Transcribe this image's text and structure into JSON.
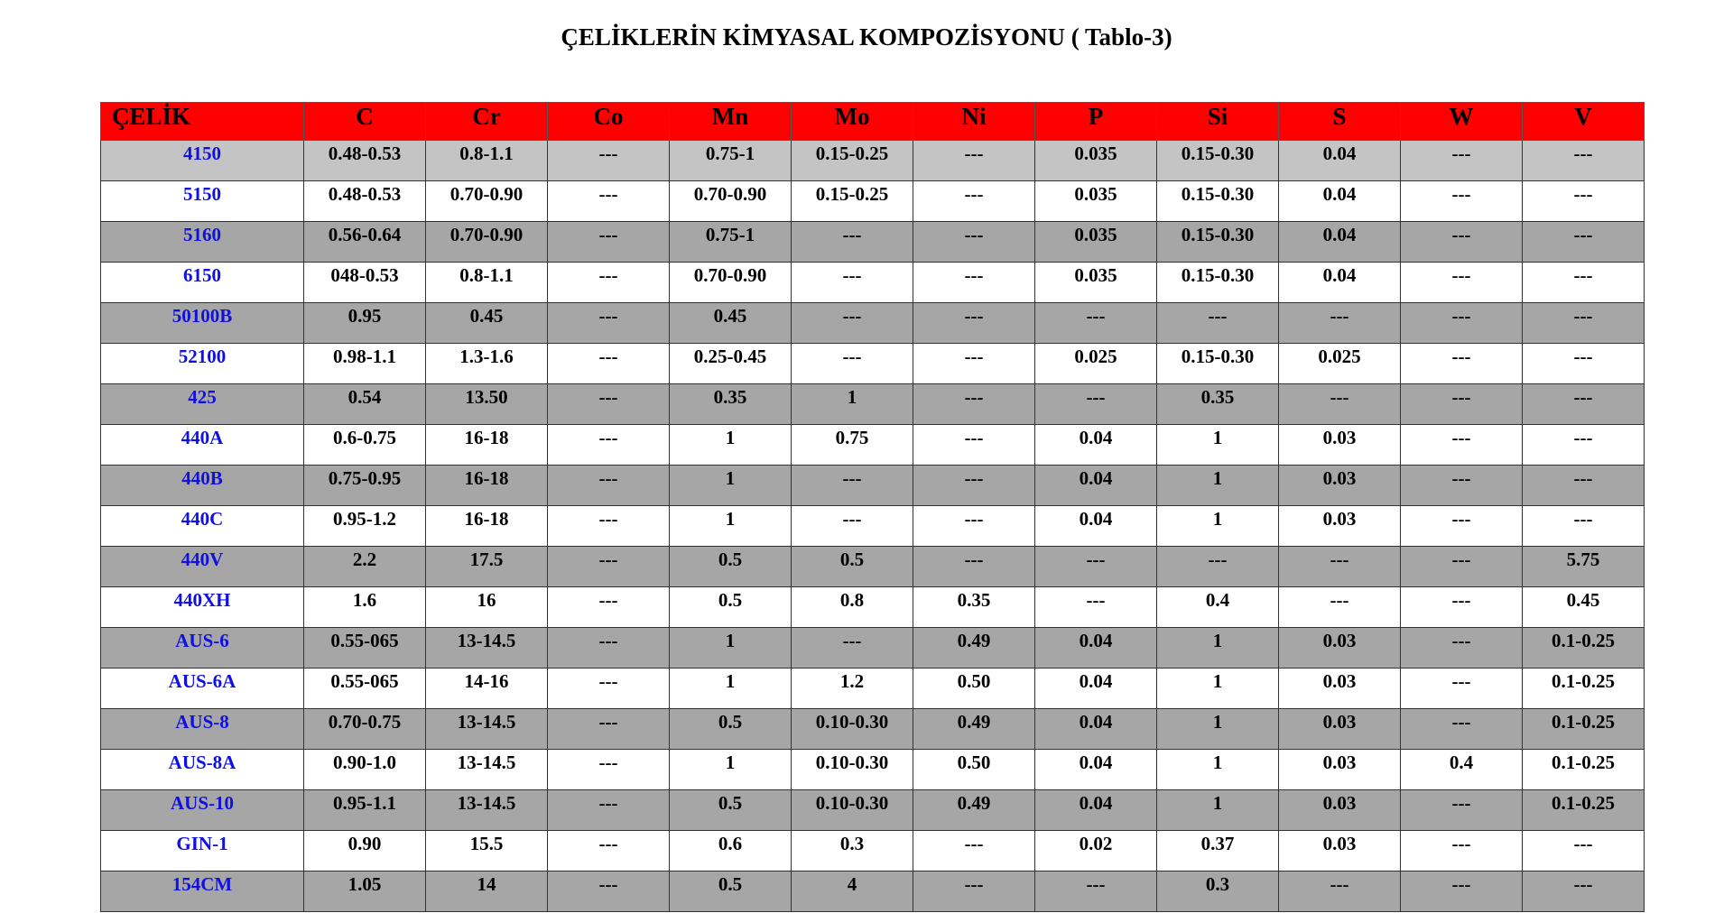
{
  "title": "ÇELİKLERİN KİMYASAL KOMPOZİSYONU ( Tablo-3)",
  "headers": [
    "ÇELİK",
    "C",
    "Cr",
    "Co",
    "Mn",
    "Mo",
    "Ni",
    "P",
    "Si",
    "S",
    "W",
    "V"
  ],
  "rows": [
    [
      "4150",
      "0.48-0.53",
      "0.8-1.1",
      "---",
      "0.75-1",
      "0.15-0.25",
      "---",
      "0.035",
      "0.15-0.30",
      "0.04",
      "---",
      "---"
    ],
    [
      "5150",
      "0.48-0.53",
      "0.70-0.90",
      "---",
      "0.70-0.90",
      "0.15-0.25",
      "---",
      "0.035",
      "0.15-0.30",
      "0.04",
      "---",
      "---"
    ],
    [
      "5160",
      "0.56-0.64",
      "0.70-0.90",
      "---",
      "0.75-1",
      "---",
      "---",
      "0.035",
      "0.15-0.30",
      "0.04",
      "---",
      "---"
    ],
    [
      "6150",
      "048-0.53",
      "0.8-1.1",
      "---",
      "0.70-0.90",
      "---",
      "---",
      "0.035",
      "0.15-0.30",
      "0.04",
      "---",
      "---"
    ],
    [
      "50100B",
      "0.95",
      "0.45",
      "---",
      "0.45",
      "---",
      "---",
      "---",
      "---",
      "---",
      "---",
      "---"
    ],
    [
      "52100",
      "0.98-1.1",
      "1.3-1.6",
      "---",
      "0.25-0.45",
      "---",
      "---",
      "0.025",
      "0.15-0.30",
      "0.025",
      "---",
      "---"
    ],
    [
      "425",
      "0.54",
      "13.50",
      "---",
      "0.35",
      "1",
      "---",
      "---",
      "0.35",
      "---",
      "---",
      "---"
    ],
    [
      "440A",
      "0.6-0.75",
      "16-18",
      "---",
      "1",
      "0.75",
      "---",
      "0.04",
      "1",
      "0.03",
      "---",
      "---"
    ],
    [
      "440B",
      "0.75-0.95",
      "16-18",
      "---",
      "1",
      "---",
      "---",
      "0.04",
      "1",
      "0.03",
      "---",
      "---"
    ],
    [
      "440C",
      "0.95-1.2",
      "16-18",
      "---",
      "1",
      "---",
      "---",
      "0.04",
      "1",
      "0.03",
      "---",
      "---"
    ],
    [
      "440V",
      "2.2",
      "17.5",
      "---",
      "0.5",
      "0.5",
      "---",
      "---",
      "---",
      "---",
      "---",
      "5.75"
    ],
    [
      "440XH",
      "1.6",
      "16",
      "---",
      "0.5",
      "0.8",
      "0.35",
      "---",
      "0.4",
      "---",
      "---",
      "0.45"
    ],
    [
      "AUS-6",
      "0.55-065",
      "13-14.5",
      "---",
      "1",
      "---",
      "0.49",
      "0.04",
      "1",
      "0.03",
      "---",
      "0.1-0.25"
    ],
    [
      "AUS-6A",
      "0.55-065",
      "14-16",
      "---",
      "1",
      "1.2",
      "0.50",
      "0.04",
      "1",
      "0.03",
      "---",
      "0.1-0.25"
    ],
    [
      "AUS-8",
      "0.70-0.75",
      "13-14.5",
      "---",
      "0.5",
      "0.10-0.30",
      "0.49",
      "0.04",
      "1",
      "0.03",
      "---",
      "0.1-0.25"
    ],
    [
      "AUS-8A",
      "0.90-1.0",
      "13-14.5",
      "---",
      "1",
      "0.10-0.30",
      "0.50",
      "0.04",
      "1",
      "0.03",
      "0.4",
      "0.1-0.25"
    ],
    [
      "AUS-10",
      "0.95-1.1",
      "13-14.5",
      "---",
      "0.5",
      "0.10-0.30",
      "0.49",
      "0.04",
      "1",
      "0.03",
      "---",
      "0.1-0.25"
    ],
    [
      "GIN-1",
      "0.90",
      "15.5",
      "---",
      "0.6",
      "0.3",
      "---",
      "0.02",
      "0.37",
      "0.03",
      "---",
      "---"
    ],
    [
      "154CM",
      "1.05",
      "14",
      "---",
      "0.5",
      "4",
      "---",
      "---",
      "0.3",
      "---",
      "---",
      "---"
    ]
  ],
  "colors": {
    "header": "#ff0000",
    "steel_name": "#1010e0",
    "row_gray": "#a6a6a6",
    "row_gray_first": "#c4c4c4"
  }
}
